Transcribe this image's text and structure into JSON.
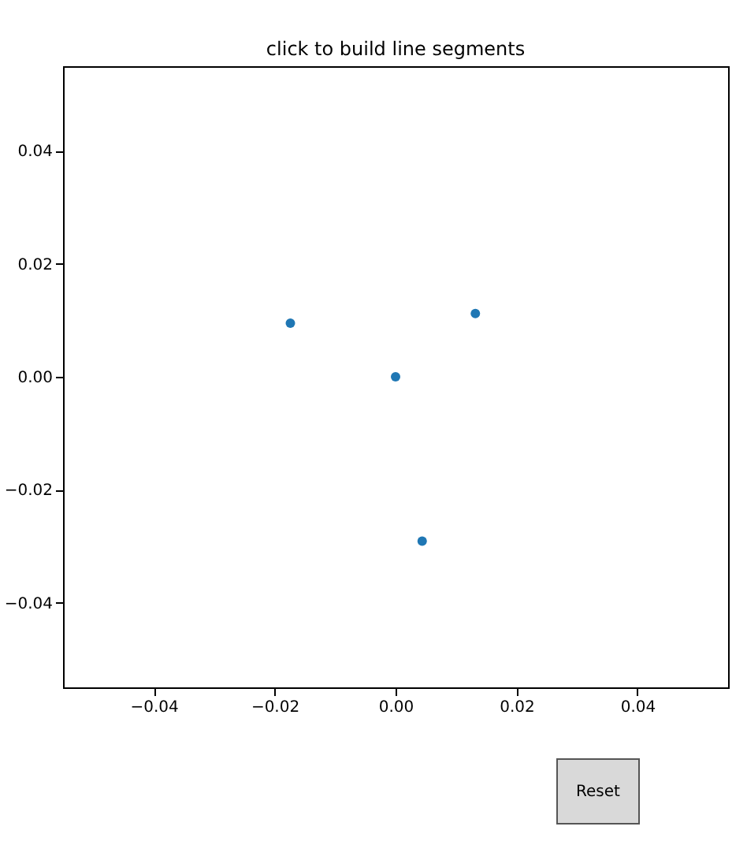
{
  "chart_data": {
    "type": "scatter",
    "title": "click to build line segments",
    "x": [
      -0.0174,
      0.0132,
      0,
      0.0044
    ],
    "series": [
      {
        "color": "#1f77b4",
        "values": [
          0.0095,
          0.0112,
          0,
          -0.0291
        ]
      }
    ],
    "marker": "circle",
    "xlim": [
      -0.055,
      0.055
    ],
    "ylim": [
      -0.055,
      0.055
    ],
    "xticks": [
      {
        "value": -0.04,
        "label": "−0.04"
      },
      {
        "value": -0.02,
        "label": "−0.02"
      },
      {
        "value": 0,
        "label": "0.00"
      },
      {
        "value": 0.02,
        "label": "0.02"
      },
      {
        "value": 0.04,
        "label": "0.04"
      }
    ],
    "yticks": [
      {
        "value": -0.04,
        "label": "−0.04"
      },
      {
        "value": -0.02,
        "label": "−0.02"
      },
      {
        "value": 0,
        "label": "0.00"
      },
      {
        "value": 0.02,
        "label": "0.02"
      },
      {
        "value": 0.04,
        "label": "0.04"
      }
    ],
    "annotations": [
      "Reset"
    ]
  }
}
